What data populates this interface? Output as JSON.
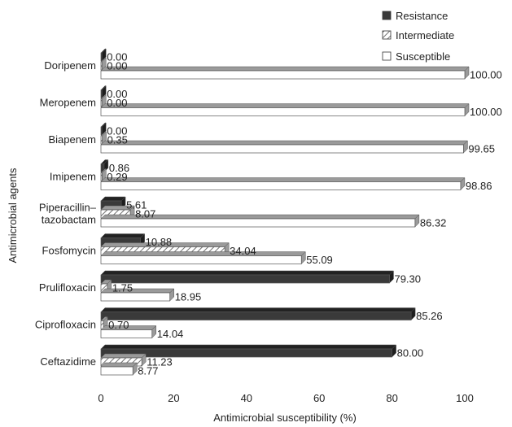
{
  "chart_data": {
    "type": "bar",
    "orientation": "horizontal",
    "categories": [
      "Doripenem",
      "Meropenem",
      "Biapenem",
      "Imipenem",
      "Piperacillin–\ntazobactam",
      "Fosfomycin",
      "Prulifloxacin",
      "Ciprofloxacin",
      "Ceftazidime"
    ],
    "series": [
      {
        "name": "Resistance",
        "values": [
          0.0,
          0.0,
          0.0,
          0.86,
          5.61,
          10.88,
          79.3,
          85.26,
          80.0
        ],
        "labels": [
          "0.00",
          "0.00",
          "0.00",
          "0.86",
          "5.61",
          "10.88",
          "79.30",
          "85.26",
          "80.00"
        ]
      },
      {
        "name": "Intermediate",
        "values": [
          0.0,
          0.0,
          0.35,
          0.29,
          8.07,
          34.04,
          1.75,
          0.7,
          11.23
        ],
        "labels": [
          "0.00",
          "0.00",
          "0.35",
          "0.29",
          "8.07",
          "34.04",
          "1.75",
          "0.70",
          "11.23"
        ]
      },
      {
        "name": "Susceptible",
        "values": [
          100.0,
          100.0,
          99.65,
          98.86,
          86.32,
          55.09,
          18.95,
          14.04,
          8.77
        ],
        "labels": [
          "100.00",
          "100.00",
          "99.65",
          "98.86",
          "86.32",
          "55.09",
          "18.95",
          "14.04",
          "8.77"
        ]
      }
    ],
    "xlabel": "Antimicrobial susceptibility (%)",
    "ylabel": "Antimicrobial agents",
    "xlim": [
      0,
      100
    ],
    "xticks": [
      "0",
      "20",
      "40",
      "60",
      "80",
      "100"
    ],
    "grid": false,
    "legend_position": "top-right",
    "colors": {
      "resistance": "#3a3a3a",
      "intermediate": "#ffffff",
      "intermediate_hatch": "#707070",
      "susceptible": "#ffffff",
      "edge": "#555555",
      "depth": "#9a9a9a"
    }
  }
}
